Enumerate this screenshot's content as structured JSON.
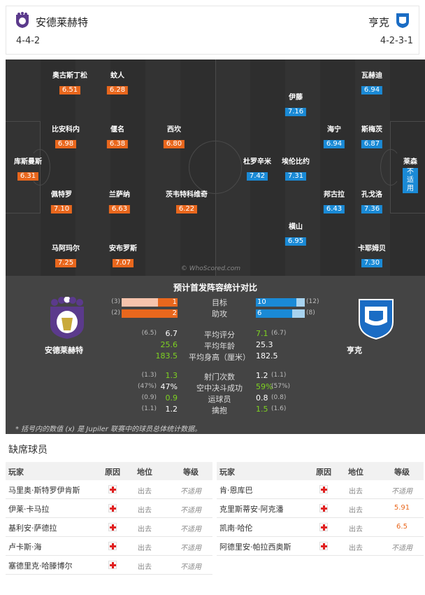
{
  "header": {
    "home": {
      "name": "安德莱赫特",
      "formation": "4-4-2"
    },
    "away": {
      "name": "亨克",
      "formation": "4-2-3-1"
    }
  },
  "pitch": {
    "watermark": "© WhoScored.com",
    "home_players": [
      {
        "name": "库斯曼斯",
        "rating": "6.31"
      },
      {
        "name": "奥古斯丁松",
        "rating": "6.51"
      },
      {
        "name": "比安科内",
        "rating": "6.98"
      },
      {
        "name": "佩特罗",
        "rating": "7.10"
      },
      {
        "name": "马阿玛尔",
        "rating": "7.25"
      },
      {
        "name": "蚊人",
        "rating": "6.28"
      },
      {
        "name": "偃名",
        "rating": "6.38"
      },
      {
        "name": "兰萨纳",
        "rating": "6.63"
      },
      {
        "name": "安布罗斯",
        "rating": "7.07"
      },
      {
        "name": "西坎",
        "rating": "6.80"
      },
      {
        "name": "茨韦特科维奇",
        "rating": "6.22"
      }
    ],
    "away_players": [
      {
        "name": "莱森",
        "rating": "不适用"
      },
      {
        "name": "瓦赫迪",
        "rating": "6.94"
      },
      {
        "name": "斯梅茨",
        "rating": "6.87"
      },
      {
        "name": "孔戈洛",
        "rating": "7.36"
      },
      {
        "name": "卡耶姆贝",
        "rating": "7.30"
      },
      {
        "name": "海宁",
        "rating": "6.94"
      },
      {
        "name": "邦古拉",
        "rating": "6.43"
      },
      {
        "name": "伊藤",
        "rating": "7.16"
      },
      {
        "name": "杜罗辛米",
        "rating": "7.42"
      },
      {
        "name": "埃伦比约",
        "rating": "7.31"
      },
      {
        "name": "横山",
        "rating": "6.95"
      }
    ]
  },
  "stats": {
    "title": "预计首发阵容统计对比",
    "home_label": "安德莱赫特",
    "away_label": "亨克",
    "bars": [
      {
        "label": "目标",
        "home": 1,
        "home_p": "(3)",
        "away": 10,
        "away_p": "(12)"
      },
      {
        "label": "助攻",
        "home": 2,
        "home_p": "(2)",
        "away": 6,
        "away_p": "(8)"
      }
    ],
    "group1": [
      {
        "label": "平均评分",
        "home": "6.7",
        "home_p": "(6.5)",
        "away": "7.1",
        "away_p": "(6.7)",
        "winner": "away"
      },
      {
        "label": "平均年龄",
        "home": "25.6",
        "home_p": "",
        "away": "25.3",
        "away_p": "",
        "winner": "home"
      },
      {
        "label": "平均身高（厘米）",
        "home": "183.5",
        "home_p": "",
        "away": "182.5",
        "away_p": "",
        "winner": "home"
      }
    ],
    "group2": [
      {
        "label": "射门次数",
        "home": "1.3",
        "home_p": "(1.3)",
        "away": "1.2",
        "away_p": "(1.1)",
        "winner": "home"
      },
      {
        "label": "空中决斗成功",
        "home": "47%",
        "home_p": "(47%)",
        "away": "59%",
        "away_p": "(57%)",
        "winner": "away"
      },
      {
        "label": "运球员",
        "home": "0.9",
        "home_p": "(0.9)",
        "away": "0.8",
        "away_p": "(0.8)",
        "winner": "home"
      },
      {
        "label": "擒抱",
        "home": "1.2",
        "home_p": "(1.1)",
        "away": "1.5",
        "away_p": "(1.6)",
        "winner": "away"
      }
    ],
    "footnote": "* 括号内的数值 (x) 是 Jupiler 联赛中的球员总体统计数据。"
  },
  "injuries": {
    "title": "缺席球员",
    "headers": {
      "player": "玩家",
      "reason": "原因",
      "position": "地位",
      "level": "等级"
    },
    "home": [
      {
        "name": "马里奥·斯特罗伊肯斯",
        "position": "出去",
        "level": "不适用"
      },
      {
        "name": "伊莱·卡马拉",
        "position": "出去",
        "level": "不适用"
      },
      {
        "name": "基利安·萨德拉",
        "position": "出去",
        "level": "不适用"
      },
      {
        "name": "卢卡斯·海",
        "position": "出去",
        "level": "不适用"
      },
      {
        "name": "塞德里克·哈滕博尔",
        "position": "出去",
        "level": "不适用"
      }
    ],
    "away": [
      {
        "name": "肯·恩库巴",
        "position": "出去",
        "level": "不适用"
      },
      {
        "name": "克里斯蒂安·阿克潘",
        "position": "出去",
        "level": "5.91"
      },
      {
        "name": "凯南·哈伦",
        "position": "出去",
        "level": "6.5"
      },
      {
        "name": "阿德里安·帕拉西奥斯",
        "position": "出去",
        "level": "不适用"
      }
    ]
  },
  "colors": {
    "home": "#e9671d",
    "away": "#1a8ad6",
    "win": "#7ed321"
  }
}
